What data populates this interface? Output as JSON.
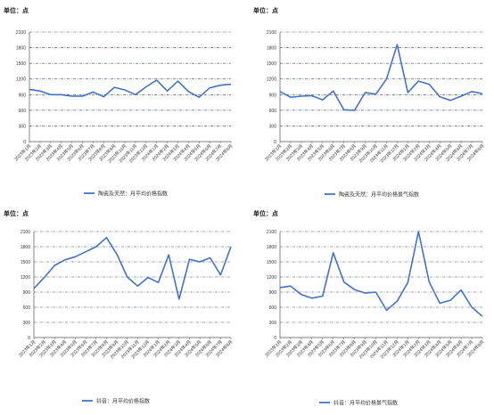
{
  "chart_data": [
    {
      "type": "line",
      "unit_label": "单位：点",
      "ylim": [
        0,
        2100
      ],
      "yticks": [
        0,
        300,
        600,
        900,
        1200,
        1500,
        1800,
        2100
      ],
      "categories": [
        "2023年1月",
        "2023年2月",
        "2023年3月",
        "2023年4月",
        "2023年5月",
        "2023年6月",
        "2023年7月",
        "2023年8月",
        "2023年9月",
        "2023年10月",
        "2023年11月",
        "2023年12月",
        "2024年1月",
        "2024年2月",
        "2024年3月",
        "2024年4月",
        "2024年5月",
        "2024年6月",
        "2024年7月",
        "2024年8月"
      ],
      "series": [
        {
          "name": "陶瓷及天然：月平均价格指数",
          "color": "#4472C4",
          "values": [
            1000,
            970,
            900,
            900,
            870,
            870,
            950,
            860,
            1040,
            990,
            900,
            1050,
            1180,
            970,
            1160,
            960,
            850,
            1030,
            1080,
            1100
          ]
        }
      ],
      "grid": true,
      "legend_position": "bottom"
    },
    {
      "type": "line",
      "unit_label": "单位：点",
      "ylim": [
        0,
        2100
      ],
      "yticks": [
        0,
        300,
        600,
        900,
        1200,
        1500,
        1800,
        2100
      ],
      "categories": [
        "2023年1月",
        "2023年2月",
        "2023年3月",
        "2023年4月",
        "2023年5月",
        "2023年6月",
        "2023年7月",
        "2023年8月",
        "2023年9月",
        "2023年10月",
        "2023年11月",
        "2023年12月",
        "2024年1月",
        "2024年2月",
        "2024年3月",
        "2024年4月",
        "2024年5月",
        "2024年6月",
        "2024年7月",
        "2024年8月"
      ],
      "series": [
        {
          "name": "陶瓷及天然：月平均价格景气指数",
          "color": "#4472C4",
          "values": [
            960,
            850,
            870,
            880,
            800,
            970,
            610,
            600,
            940,
            910,
            1200,
            1860,
            940,
            1160,
            1100,
            860,
            790,
            870,
            960,
            920
          ]
        }
      ],
      "grid": true,
      "legend_position": "bottom"
    },
    {
      "type": "line",
      "unit_label": "单位：点",
      "ylim": [
        0,
        2100
      ],
      "yticks": [
        0,
        300,
        600,
        900,
        1200,
        1500,
        1800,
        2100
      ],
      "categories": [
        "2023年1月",
        "2023年2月",
        "2023年3月",
        "2023年4月",
        "2023年5月",
        "2023年6月",
        "2023年7月",
        "2023年8月",
        "2023年9月",
        "2023年10月",
        "2023年11月",
        "2023年12月",
        "2024年1月",
        "2024年2月",
        "2024年3月",
        "2024年4月",
        "2024年5月",
        "2024年6月",
        "2024年7月",
        "2024年8月"
      ],
      "series": [
        {
          "name": "抖音：月平均价格指数",
          "color": "#4472C4",
          "values": [
            970,
            1190,
            1430,
            1540,
            1600,
            1700,
            1800,
            1980,
            1650,
            1200,
            1020,
            1190,
            1090,
            1640,
            760,
            1550,
            1500,
            1580,
            1240,
            1800
          ]
        }
      ],
      "grid": true,
      "legend_position": "bottom"
    },
    {
      "type": "line",
      "unit_label": "单位：点",
      "ylim": [
        0,
        2100
      ],
      "yticks": [
        0,
        300,
        600,
        900,
        1200,
        1500,
        1800,
        2100
      ],
      "categories": [
        "2023年1月",
        "2023年2月",
        "2023年3月",
        "2023年4月",
        "2023年5月",
        "2023年6月",
        "2023年7月",
        "2023年8月",
        "2023年9月",
        "2023年10月",
        "2023年11月",
        "2023年12月",
        "2024年1月",
        "2024年2月",
        "2024年3月",
        "2024年4月",
        "2024年5月",
        "2024年6月",
        "2024年7月",
        "2024年8月"
      ],
      "series": [
        {
          "name": "抖音：月平均价格景气指数",
          "color": "#4472C4",
          "values": [
            990,
            1020,
            850,
            780,
            820,
            1680,
            1100,
            950,
            880,
            900,
            540,
            720,
            1090,
            2100,
            1100,
            680,
            740,
            940,
            600,
            420
          ]
        }
      ],
      "grid": true,
      "legend_position": "bottom"
    }
  ]
}
